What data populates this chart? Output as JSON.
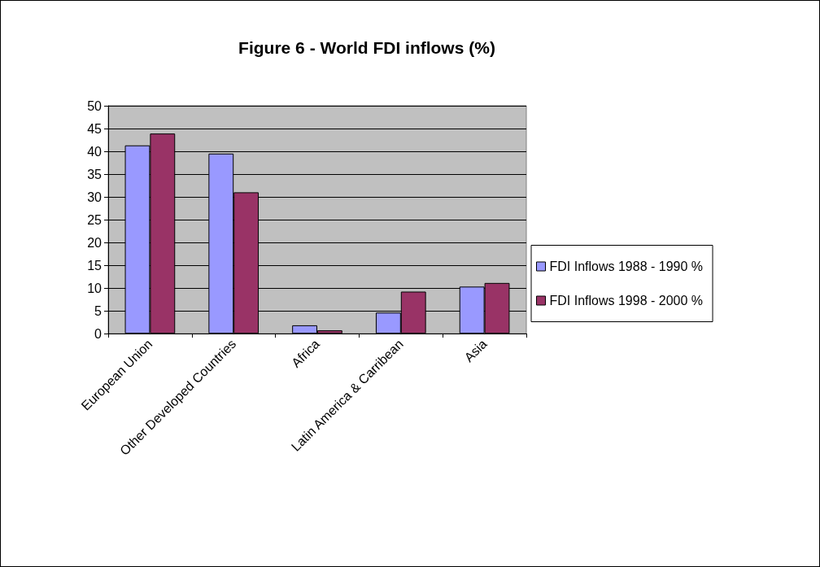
{
  "chart_data": {
    "type": "bar",
    "title": "Figure 6 - World FDI inflows (%)",
    "categories": [
      "European Union",
      "Other Developed Countries",
      "Africa",
      "Latin America & Carribean",
      "Asia"
    ],
    "series": [
      {
        "name": "FDI Inflows 1988 - 1990 %",
        "color": "#9999ff",
        "values": [
          41.3,
          39.5,
          1.8,
          4.6,
          10.3
        ]
      },
      {
        "name": "FDI Inflows 1998 - 2000 %",
        "color": "#993366",
        "values": [
          43.9,
          31.0,
          0.7,
          9.2,
          11.1
        ]
      }
    ],
    "ylim": [
      0,
      50
    ],
    "yticks": [
      0,
      5,
      10,
      15,
      20,
      25,
      30,
      35,
      40,
      45,
      50
    ],
    "grid": "y",
    "legend": "right"
  }
}
